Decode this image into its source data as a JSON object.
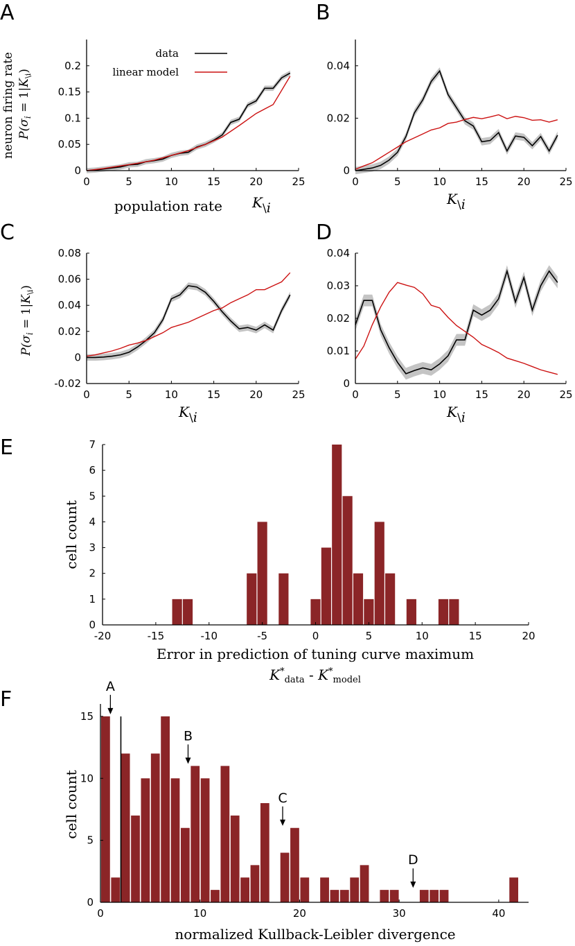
{
  "panels": {
    "A": "A",
    "B": "B",
    "C": "C",
    "D": "D",
    "E": "E",
    "F": "F"
  },
  "colors": {
    "data_line": "#000000",
    "model_line": "#cc1111",
    "ci_band": "#c4c4c4",
    "bar_fill": "#8b2527",
    "axis": "#000000"
  },
  "chart_data": [
    {
      "id": "A",
      "type": "line",
      "ylabel_top": "neuron firing rate",
      "ylabel_bottom": "P(σ_i = 1|K_\\i)",
      "xlabel_prefix": "population rate",
      "xlabel_symbol": "K\\i",
      "xlim": [
        0,
        25
      ],
      "ylim": [
        0,
        0.25
      ],
      "xticks": [
        "0",
        "5",
        "10",
        "15",
        "20",
        "25"
      ],
      "yticks": [
        "0",
        "0.05",
        "0.1",
        "0.15",
        "0.2"
      ],
      "legend": {
        "position": "top-center",
        "entries": [
          "data",
          "linear model"
        ]
      },
      "series": [
        {
          "name": "data",
          "band": 0.005,
          "x": [
            0,
            1,
            2,
            3,
            4,
            5,
            6,
            7,
            8,
            9,
            10,
            11,
            12,
            13,
            14,
            15,
            16,
            17,
            18,
            19,
            20,
            21,
            22,
            23,
            24
          ],
          "y": [
            0,
            0.001,
            0.003,
            0.005,
            0.007,
            0.011,
            0.012,
            0.017,
            0.019,
            0.022,
            0.029,
            0.033,
            0.035,
            0.045,
            0.05,
            0.058,
            0.068,
            0.092,
            0.098,
            0.125,
            0.133,
            0.157,
            0.157,
            0.177,
            0.186
          ]
        },
        {
          "name": "linear model",
          "x": [
            0,
            2,
            4,
            6,
            8,
            10,
            12,
            14,
            16,
            18,
            20,
            22,
            24
          ],
          "y": [
            0,
            0.004,
            0.009,
            0.014,
            0.02,
            0.029,
            0.038,
            0.05,
            0.064,
            0.086,
            0.109,
            0.126,
            0.18
          ]
        }
      ]
    },
    {
      "id": "B",
      "type": "line",
      "xlabel_symbol": "K\\i",
      "xlim": [
        0,
        25
      ],
      "ylim": [
        0,
        0.05
      ],
      "xticks": [
        "0",
        "5",
        "10",
        "15",
        "20",
        "25"
      ],
      "yticks": [
        "0",
        "0.02",
        "0.04"
      ],
      "series": [
        {
          "name": "data",
          "band": 0.0014,
          "x": [
            0,
            1,
            2,
            3,
            4,
            5,
            6,
            7,
            8,
            9,
            10,
            11,
            12,
            13,
            14,
            15,
            16,
            17,
            18,
            19,
            20,
            21,
            22,
            23,
            24
          ],
          "y": [
            0,
            0.0005,
            0.001,
            0.002,
            0.004,
            0.007,
            0.013,
            0.022,
            0.027,
            0.034,
            0.038,
            0.029,
            0.024,
            0.019,
            0.017,
            0.011,
            0.0115,
            0.0145,
            0.0075,
            0.0132,
            0.0127,
            0.0095,
            0.013,
            0.0075,
            0.0135
          ]
        },
        {
          "name": "linear model",
          "x": [
            0,
            1,
            2,
            3,
            4,
            5,
            6,
            7,
            8,
            9,
            10,
            11,
            12,
            13,
            14,
            15,
            16,
            17,
            18,
            19,
            20,
            21,
            22,
            23,
            24
          ],
          "y": [
            0.0005,
            0.0018,
            0.003,
            0.005,
            0.007,
            0.009,
            0.011,
            0.0125,
            0.014,
            0.0155,
            0.0163,
            0.018,
            0.0185,
            0.0195,
            0.0203,
            0.0198,
            0.0205,
            0.0213,
            0.0198,
            0.0207,
            0.0202,
            0.0192,
            0.0194,
            0.0185,
            0.0194
          ]
        }
      ]
    },
    {
      "id": "C",
      "type": "line",
      "ylabel_bottom": "P(σ_i = 1|K_\\i)",
      "xlabel_symbol": "K\\i",
      "xlim": [
        0,
        25
      ],
      "ylim": [
        -0.02,
        0.08
      ],
      "xticks": [
        "0",
        "5",
        "10",
        "15",
        "20",
        "25"
      ],
      "yticks": [
        "-0.02",
        "0",
        "0.02",
        "0.04",
        "0.06",
        "0.08"
      ],
      "series": [
        {
          "name": "data",
          "band": 0.0025,
          "x": [
            0,
            1,
            2,
            3,
            4,
            5,
            6,
            7,
            8,
            9,
            10,
            11,
            12,
            13,
            14,
            15,
            16,
            17,
            18,
            19,
            20,
            21,
            22,
            23,
            24
          ],
          "y": [
            0,
            0,
            0.0003,
            0.001,
            0.002,
            0.004,
            0.008,
            0.013,
            0.019,
            0.029,
            0.045,
            0.048,
            0.055,
            0.054,
            0.05,
            0.043,
            0.035,
            0.028,
            0.022,
            0.023,
            0.021,
            0.025,
            0.021,
            0.036,
            0.048
          ]
        },
        {
          "name": "linear model",
          "x": [
            0,
            1,
            2,
            3,
            4,
            5,
            6,
            7,
            8,
            9,
            10,
            11,
            12,
            13,
            14,
            15,
            16,
            17,
            18,
            19,
            20,
            21,
            22,
            23,
            24
          ],
          "y": [
            0.001,
            0.002,
            0.0035,
            0.005,
            0.007,
            0.0095,
            0.011,
            0.013,
            0.016,
            0.019,
            0.023,
            0.025,
            0.027,
            0.03,
            0.033,
            0.036,
            0.038,
            0.042,
            0.045,
            0.048,
            0.052,
            0.052,
            0.055,
            0.058,
            0.065
          ]
        }
      ]
    },
    {
      "id": "D",
      "type": "line",
      "xlabel_symbol": "K\\i",
      "xlim": [
        0,
        25
      ],
      "ylim": [
        0,
        0.04
      ],
      "xticks": [
        "0",
        "5",
        "10",
        "15",
        "20",
        "25"
      ],
      "yticks": [
        "0",
        "0.01",
        "0.02",
        "0.03",
        "0.04"
      ],
      "series": [
        {
          "name": "data",
          "band": 0.0018,
          "x": [
            0,
            1,
            2,
            3,
            4,
            5,
            6,
            7,
            8,
            9,
            10,
            11,
            12,
            13,
            14,
            15,
            16,
            17,
            18,
            19,
            20,
            21,
            22,
            23,
            24
          ],
          "y": [
            0.018,
            0.0255,
            0.0255,
            0.0165,
            0.011,
            0.0065,
            0.003,
            0.004,
            0.0048,
            0.0042,
            0.006,
            0.0085,
            0.0134,
            0.0134,
            0.0225,
            0.021,
            0.0225,
            0.026,
            0.0345,
            0.025,
            0.0325,
            0.0225,
            0.03,
            0.0345,
            0.031
          ]
        },
        {
          "name": "linear model",
          "x": [
            0,
            1,
            2,
            3,
            4,
            5,
            6,
            7,
            8,
            9,
            10,
            11,
            12,
            13,
            14,
            15,
            16,
            17,
            18,
            19,
            20,
            21,
            22,
            23,
            24
          ],
          "y": [
            0.0075,
            0.0115,
            0.018,
            0.0235,
            0.028,
            0.031,
            0.0302,
            0.0295,
            0.0275,
            0.024,
            0.0232,
            0.0203,
            0.0178,
            0.016,
            0.0142,
            0.012,
            0.0108,
            0.0095,
            0.0078,
            0.007,
            0.0062,
            0.0052,
            0.0042,
            0.0035,
            0.0028
          ]
        }
      ]
    },
    {
      "id": "E",
      "type": "bar",
      "ylabel": "cell count",
      "xlabel": "Error in prediction of tuning curve maximum",
      "xlabel2_parts": [
        "K",
        "*",
        "data",
        " - ",
        "K",
        "*",
        "model"
      ],
      "xlim": [
        -20,
        20
      ],
      "ylim": [
        0,
        7
      ],
      "xticks": [
        "-20",
        "-15",
        "-10",
        "-5",
        "0",
        "5",
        "10",
        "15",
        "20"
      ],
      "yticks": [
        "0",
        "1",
        "2",
        "3",
        "4",
        "5",
        "6",
        "7"
      ],
      "x": [
        -13,
        -12,
        -6,
        -5,
        -3,
        0,
        1,
        2,
        3,
        4,
        5,
        6,
        7,
        9,
        12,
        13
      ],
      "values": [
        1,
        1,
        2,
        4,
        2,
        1,
        3,
        7,
        5,
        2,
        1,
        4,
        2,
        1,
        1,
        1
      ]
    },
    {
      "id": "F",
      "type": "bar",
      "ylabel": "cell count",
      "xlabel": "normalized Kullback-Leibler divergence",
      "xlim": [
        0,
        43
      ],
      "ylim": [
        0,
        16
      ],
      "xticks": [
        "0",
        "10",
        "20",
        "30",
        "40"
      ],
      "yticks": [
        "0",
        "5",
        "10",
        "15"
      ],
      "threshold_x": 2.05,
      "bin_start": 0,
      "bin_width": 1.0,
      "values": [
        15,
        2,
        12,
        7,
        10,
        12,
        15,
        10,
        6,
        11,
        10,
        1,
        11,
        7,
        2,
        3,
        8,
        0,
        4,
        6,
        2,
        0,
        2,
        1,
        1,
        2,
        3,
        0,
        1,
        1,
        0,
        0,
        1,
        1,
        1,
        0,
        0,
        0,
        0,
        0,
        0,
        2
      ],
      "annotations": [
        {
          "label": "A",
          "x": 1.0,
          "y": 15
        },
        {
          "label": "B",
          "x": 8.8,
          "y": 11
        },
        {
          "label": "C",
          "x": 18.3,
          "y": 6
        },
        {
          "label": "D",
          "x": 31.4,
          "y": 1
        }
      ]
    }
  ]
}
